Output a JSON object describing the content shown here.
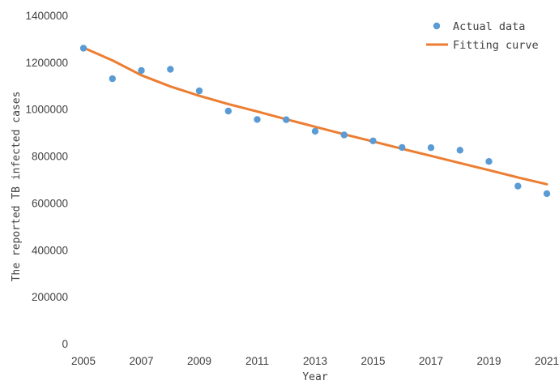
{
  "chart_data": {
    "type": "scatter",
    "xlabel": "Year",
    "ylabel": "The reported TB infected cases",
    "xlim": [
      2005,
      2021
    ],
    "ylim": [
      0,
      1400000
    ],
    "x_ticks": [
      "2005",
      "2007",
      "2009",
      "2011",
      "2013",
      "2015",
      "2017",
      "2019",
      "2021"
    ],
    "y_ticks": [
      "0",
      "200000",
      "400000",
      "600000",
      "800000",
      "1000000",
      "1200000",
      "1400000"
    ],
    "grid": false,
    "legend_position": "top-right",
    "series": [
      {
        "name": "Actual data",
        "kind": "scatter",
        "color": "#5B9BD5",
        "x": [
          2005,
          2006,
          2007,
          2008,
          2009,
          2010,
          2011,
          2012,
          2013,
          2014,
          2015,
          2016,
          2017,
          2018,
          2019,
          2020,
          2021
        ],
        "y": [
          1260000,
          1130000,
          1165000,
          1170000,
          1078000,
          992000,
          956000,
          955000,
          906000,
          890000,
          865000,
          837000,
          836000,
          825000,
          777000,
          672000,
          640000
        ]
      },
      {
        "name": "Fitting curve",
        "kind": "line",
        "color": "#ED7D31",
        "x": [
          2005,
          2006,
          2007,
          2008,
          2009,
          2010,
          2011,
          2012,
          2013,
          2014,
          2015,
          2016,
          2017,
          2018,
          2019,
          2020,
          2021
        ],
        "y": [
          1262000,
          1208000,
          1145000,
          1097000,
          1057000,
          1022000,
          990000,
          957000,
          925000,
          893000,
          862000,
          831000,
          801000,
          770000,
          740000,
          709000,
          680000
        ]
      }
    ]
  }
}
